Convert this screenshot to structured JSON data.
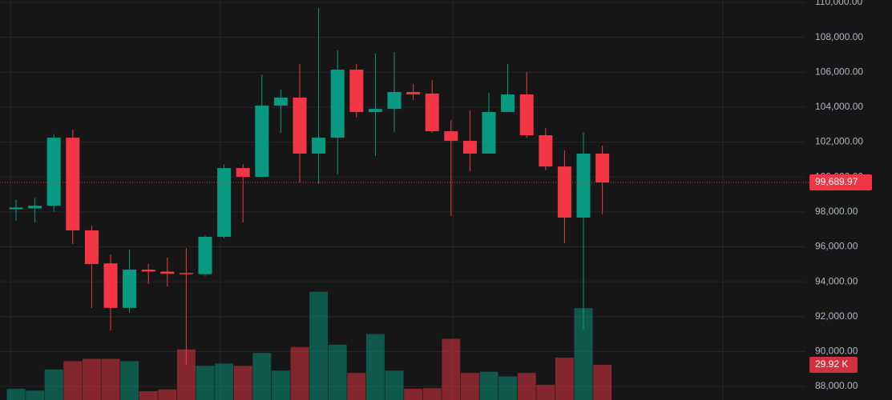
{
  "chart_data": {
    "type": "candlestick",
    "ylim": [
      87220,
      110140
    ],
    "yticks": [
      {
        "value": 88000,
        "label": "88,000.00"
      },
      {
        "value": 90000,
        "label": "90,000.00"
      },
      {
        "value": 92000,
        "label": "92,000.00"
      },
      {
        "value": 94000,
        "label": "94,000.00"
      },
      {
        "value": 96000,
        "label": "96,000.00"
      },
      {
        "value": 98000,
        "label": "98,000.00"
      },
      {
        "value": 100000,
        "label": "100,000.00"
      },
      {
        "value": 102000,
        "label": "102,000.00"
      },
      {
        "value": 104000,
        "label": "104,000.00"
      },
      {
        "value": 106000,
        "label": "106,000.00"
      },
      {
        "value": 108000,
        "label": "108,000.00"
      },
      {
        "value": 110000,
        "label": "110,000.00"
      }
    ],
    "grid": true,
    "up_color": "#089981",
    "down_color": "#f23645",
    "open": [
      98150,
      98200,
      98350,
      102250,
      96940,
      95050,
      92500,
      94690,
      94580,
      94500,
      94430,
      96570,
      100510,
      100010,
      104090,
      104550,
      101340,
      102250,
      106150,
      103720,
      103900,
      104870,
      104780,
      102620,
      102070,
      101340,
      103720,
      104730,
      102390,
      100600,
      97670,
      101340
    ],
    "high": [
      98700,
      98800,
      102450,
      102710,
      97210,
      95560,
      95840,
      95010,
      95380,
      95930,
      96660,
      100740,
      100740,
      105870,
      105000,
      106470,
      109680,
      107250,
      106470,
      107070,
      107160,
      105330,
      105550,
      103260,
      103810,
      104820,
      106470,
      106010,
      102800,
      101520,
      102530,
      101800
    ],
    "low": [
      97500,
      97400,
      98000,
      96160,
      92490,
      91210,
      92220,
      93870,
      93730,
      89240,
      94330,
      96480,
      97400,
      100010,
      102530,
      99690,
      99600,
      100150,
      103400,
      101200,
      102580,
      104410,
      102530,
      97760,
      100330,
      101340,
      103720,
      102250,
      100380,
      96200,
      91260,
      97860
    ],
    "close": [
      98250,
      98350,
      102250,
      96940,
      95010,
      92500,
      94690,
      94580,
      94450,
      94450,
      96570,
      100510,
      100010,
      104090,
      104550,
      101340,
      102250,
      106150,
      103720,
      103900,
      104870,
      104730,
      102620,
      102070,
      101340,
      103720,
      104730,
      102390,
      100600,
      97670,
      101340,
      99689.97
    ],
    "last_price_label": "99,689.97",
    "volume": [
      9.5,
      8,
      26,
      33,
      35,
      35,
      33,
      7.5,
      9,
      43,
      29,
      31,
      29,
      40,
      25,
      45,
      92,
      47,
      23,
      56,
      25,
      9.5,
      10,
      52,
      23,
      24,
      20,
      23,
      13,
      36,
      78,
      29.92
    ],
    "volume_lim": [
      0,
      340
    ],
    "last_volume_label": "29.92 K"
  }
}
